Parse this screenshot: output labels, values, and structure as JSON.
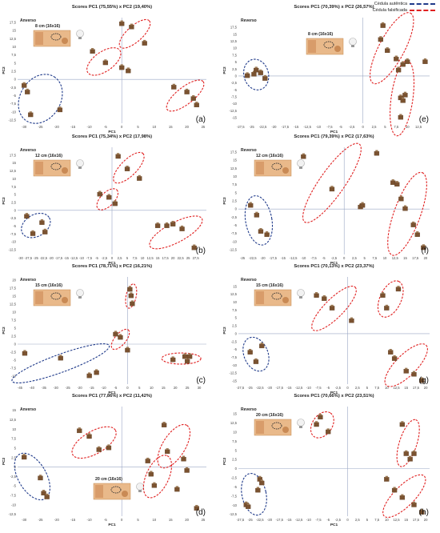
{
  "legend": [
    {
      "label": "Cédula autêntica",
      "color": "#1f3a8a"
    },
    {
      "label": "Cédula falsificada",
      "color": "#e02020"
    }
  ],
  "axis_labels": {
    "x": "PC1",
    "y": "PC2"
  },
  "chart_data": [
    {
      "type": "scatter",
      "panel": "(a)",
      "title": "Scores PC1 (75,55%) x PC2 (19,40%)",
      "side": "Anverso",
      "distance": "8 cm (16x16)",
      "xlabel": "PC1",
      "ylabel": "PC2",
      "xlim": [
        -32,
        26
      ],
      "ylim": [
        -13.5,
        19
      ],
      "xticks": [
        -30,
        -25,
        -20,
        -15,
        -10,
        -5,
        0,
        5,
        10,
        15,
        20,
        25
      ],
      "yticks": [
        -12.5,
        -10,
        -7.5,
        -5,
        -2.5,
        0,
        2.5,
        5,
        7.5,
        10,
        12.5,
        15,
        17.5
      ],
      "series": [
        {
          "group": "authentic",
          "x": [
            -30,
            -29,
            -28,
            -19
          ],
          "y": [
            -2,
            -4,
            -11,
            -9.5
          ]
        },
        {
          "group": "counterfeit",
          "x": [
            0,
            3,
            7,
            -9,
            -5,
            0,
            2,
            16,
            20,
            22,
            23
          ],
          "y": [
            17,
            16,
            11,
            8.5,
            5,
            3.5,
            2.5,
            -2.5,
            -4,
            -6,
            -8
          ]
        }
      ],
      "ellipses": [
        {
          "group": "authentic",
          "cx": -25,
          "cy": -6,
          "rx": 8,
          "ry": 6.2,
          "angle": -58
        },
        {
          "group": "counterfeit",
          "cx": 4,
          "cy": 14,
          "rx": 6,
          "ry": 2.4,
          "angle": -42
        },
        {
          "group": "counterfeit",
          "cx": -5.5,
          "cy": 5.5,
          "rx": 6,
          "ry": 3,
          "angle": -35
        },
        {
          "group": "counterfeit",
          "cx": 19.5,
          "cy": -5,
          "rx": 7,
          "ry": 2.6,
          "angle": -38
        }
      ]
    },
    {
      "type": "scatter",
      "panel": "(e)",
      "title": "Scores PC1 (70,39%) x PC2 (26,57%)",
      "side": "Reverso",
      "distance": "8 cm (16x16)",
      "xlabel": "PC1",
      "ylabel": "PC2",
      "xlim": [
        -28,
        15
      ],
      "ylim": [
        -17,
        21
      ],
      "xticks": [
        -27.5,
        -25,
        -22.5,
        -20,
        -17.5,
        -15,
        -12.5,
        -10,
        -7.5,
        -5,
        -2.5,
        0,
        2.5,
        5,
        7.5,
        10,
        12.5
      ],
      "yticks": [
        -15,
        -12.5,
        -10,
        -7.5,
        -5,
        -2.5,
        0,
        2.5,
        5,
        7.5,
        10,
        12.5,
        15,
        17.5
      ],
      "series": [
        {
          "group": "authentic",
          "x": [
            -26,
            -24.5,
            -24,
            -22,
            -23
          ],
          "y": [
            0,
            0.5,
            2,
            -1,
            1
          ]
        },
        {
          "group": "counterfeit",
          "x": [
            4.5,
            4,
            5.5,
            7.5,
            9,
            10,
            8,
            8.5,
            9,
            9.5,
            8.5,
            14
          ],
          "y": [
            18,
            13,
            9,
            6,
            4,
            5,
            2,
            -8,
            -9,
            -7,
            -15,
            5
          ]
        }
      ],
      "ellipses": [
        {
          "group": "authentic",
          "cx": -24,
          "cy": 0.5,
          "rx": 3.4,
          "ry": 4.3,
          "angle": -15
        },
        {
          "group": "counterfeit",
          "cx": 6.5,
          "cy": 10,
          "rx": 11,
          "ry": 3.5,
          "angle": -62
        },
        {
          "group": "counterfeit",
          "cx": 8.8,
          "cy": -8,
          "rx": 10.5,
          "ry": 3,
          "angle": -82
        }
      ]
    },
    {
      "type": "scatter",
      "panel": "(b)",
      "title": "Scores PC1 (75,34%) x PC2 (17,98%)",
      "side": "Anverso",
      "distance": "12 cm (16x16)",
      "xlabel": "PC1",
      "ylabel": "PC2",
      "xlim": [
        -31,
        31
      ],
      "ylim": [
        -14,
        20
      ],
      "xticks": [
        -30,
        -27.5,
        -25,
        -22.5,
        -20,
        -17.5,
        -15,
        -12.5,
        -10,
        -7.5,
        -5,
        -2.5,
        0,
        2.5,
        5,
        7.5,
        10,
        12.5,
        15,
        17.5,
        20,
        22.5,
        25,
        27.5
      ],
      "yticks": [
        -12.5,
        -10,
        -7.5,
        -5,
        -2.5,
        0,
        2.5,
        5,
        7.5,
        10,
        12.5,
        15,
        17.5
      ],
      "series": [
        {
          "group": "authentic",
          "x": [
            -28,
            -26,
            -23,
            -22
          ],
          "y": [
            -2,
            -7.5,
            -4,
            -7
          ]
        },
        {
          "group": "counterfeit",
          "x": [
            2,
            5,
            9,
            -4,
            -1,
            1,
            15,
            18,
            20,
            23,
            27
          ],
          "y": [
            17,
            13,
            10,
            5,
            4,
            2,
            -5,
            -5,
            -4.5,
            -6,
            -12
          ]
        }
      ],
      "ellipses": [
        {
          "group": "authentic",
          "cx": -25,
          "cy": -4.8,
          "rx": 5,
          "ry": 3.5,
          "angle": -30
        },
        {
          "group": "counterfeit",
          "cx": 5.5,
          "cy": 13.5,
          "rx": 6.5,
          "ry": 2.6,
          "angle": -45
        },
        {
          "group": "counterfeit",
          "cx": -1.5,
          "cy": 3.5,
          "rx": 4.3,
          "ry": 2.2,
          "angle": -45
        },
        {
          "group": "counterfeit",
          "cx": 21,
          "cy": -7,
          "rx": 9.5,
          "ry": 3.2,
          "angle": -28
        }
      ]
    },
    {
      "type": "scatter",
      "panel": "(f)",
      "title": "Scores PC1 (79,39%) x PC2 (17,63%)",
      "side": "Reverso",
      "distance": "12 cm (16x16)",
      "xlabel": "PC1",
      "ylabel": "PC2",
      "xlim": [
        -26,
        21
      ],
      "ylim": [
        -14,
        19
      ],
      "xticks": [
        -25,
        -22.5,
        -20,
        -17.5,
        -15,
        -12.5,
        -10,
        -7.5,
        -5,
        -2.5,
        0,
        2.5,
        5,
        7.5,
        10,
        12.5,
        15,
        17.5,
        20
      ],
      "yticks": [
        -12.5,
        -10,
        -7.5,
        -5,
        -2.5,
        0,
        2.5,
        5,
        7.5,
        10,
        12.5,
        15,
        17.5
      ],
      "series": [
        {
          "group": "authentic",
          "x": [
            -23,
            -21.5,
            -20.5,
            -19
          ],
          "y": [
            1,
            -2,
            -7,
            -8
          ]
        },
        {
          "group": "counterfeit",
          "x": [
            -10,
            -3,
            4,
            4.5,
            8,
            12,
            13,
            14,
            15,
            17,
            18,
            19.5
          ],
          "y": [
            16,
            6,
            0.5,
            1,
            17,
            8,
            7.5,
            3,
            0,
            -5,
            -8,
            -12
          ]
        }
      ],
      "ellipses": [
        {
          "group": "authentic",
          "cx": -21,
          "cy": -3.5,
          "rx": 3.6,
          "ry": 6.8,
          "angle": -10
        },
        {
          "group": "counterfeit",
          "cx": -3,
          "cy": 8,
          "rx": 13,
          "ry": 3.4,
          "angle": -55
        },
        {
          "group": "counterfeit",
          "cx": 15.5,
          "cy": -1.5,
          "rx": 12,
          "ry": 3.6,
          "angle": -70
        }
      ]
    },
    {
      "type": "scatter",
      "panel": "(c)",
      "title": "Scores PC1 (78,71%) x PC2 (16,21%)",
      "side": "Anverso",
      "distance": "15 cm (16x16)",
      "xlabel": "PC1",
      "ylabel": "PC2",
      "xlim": [
        -46,
        33
      ],
      "ylim": [
        -12.5,
        21
      ],
      "xticks": [
        -45,
        -40,
        -35,
        -30,
        -25,
        -20,
        -15,
        -10,
        -5,
        0,
        5,
        10,
        15,
        20,
        25,
        30
      ],
      "yticks": [
        -10,
        -7.5,
        -5,
        -2.5,
        0,
        2.5,
        5,
        7.5,
        10,
        12.5,
        15,
        17.5,
        20
      ],
      "series": [
        {
          "group": "authentic",
          "x": [
            -43,
            -28,
            -16,
            -13
          ],
          "y": [
            -3,
            -4.5,
            -10,
            -9
          ]
        },
        {
          "group": "counterfeit",
          "x": [
            1,
            1.5,
            2,
            -5,
            -3,
            0,
            19,
            24,
            25,
            26
          ],
          "y": [
            17,
            15,
            12.5,
            3,
            2,
            -2,
            -5,
            -4,
            -5.5,
            -4
          ]
        }
      ],
      "ellipses": [
        {
          "group": "authentic",
          "cx": -28,
          "cy": -6,
          "rx": 18.5,
          "ry": 3.2,
          "angle": -20
        },
        {
          "group": "counterfeit",
          "cx": 1.5,
          "cy": 15,
          "rx": 4.4,
          "ry": 1.8,
          "angle": -78
        },
        {
          "group": "counterfeit",
          "cx": -3,
          "cy": 1.5,
          "rx": 4.4,
          "ry": 2,
          "angle": -50
        },
        {
          "group": "counterfeit",
          "cx": 22.5,
          "cy": -4.5,
          "rx": 7,
          "ry": 2,
          "angle": 0
        }
      ]
    },
    {
      "type": "scatter",
      "panel": "(g)",
      "title": "Scores PC1 (70,13%) x PC2 (23,37%)",
      "side": "Reverso",
      "distance": "15 cm (16x16)",
      "xlabel": "PC1",
      "ylabel": "PC2",
      "xlim": [
        -28,
        21
      ],
      "ylim": [
        -16,
        18
      ],
      "xticks": [
        -27.5,
        -25,
        -22.5,
        -20,
        -17.5,
        -15,
        -12.5,
        -10,
        -7.5,
        -5,
        -2.5,
        0,
        2.5,
        5,
        7.5,
        10,
        12.5,
        15,
        17.5,
        20
      ],
      "yticks": [
        -15,
        -12.5,
        -10,
        -7.5,
        -5,
        -2.5,
        0,
        2.5,
        5,
        7.5,
        10,
        12.5,
        15
      ],
      "series": [
        {
          "group": "authentic",
          "x": [
            -25,
            -23.5,
            -22
          ],
          "y": [
            -6,
            -9,
            -4
          ]
        },
        {
          "group": "counterfeit",
          "x": [
            -8,
            -6,
            -4,
            1,
            9,
            10,
            13,
            11,
            12,
            15,
            17,
            19
          ],
          "y": [
            12,
            11,
            8,
            4,
            12,
            8,
            14,
            -6,
            -8,
            -12,
            -13,
            -15
          ]
        }
      ],
      "ellipses": [
        {
          "group": "authentic",
          "cx": -23.5,
          "cy": -6.5,
          "rx": 3.4,
          "ry": 5,
          "angle": -22
        },
        {
          "group": "counterfeit",
          "cx": -3.5,
          "cy": 8,
          "rx": 8.5,
          "ry": 2.7,
          "angle": -45
        },
        {
          "group": "counterfeit",
          "cx": 11,
          "cy": 11,
          "rx": 5.5,
          "ry": 3,
          "angle": -65
        },
        {
          "group": "counterfeit",
          "cx": 15,
          "cy": -10,
          "rx": 8,
          "ry": 3,
          "angle": -45
        }
      ]
    },
    {
      "type": "scatter",
      "panel": "(d)",
      "title": "Scores PC1 (77,86%) x PC2 (11,42%)",
      "side": "Anverso",
      "distance": "20 cm (16x16)",
      "xlabel": "PC1",
      "ylabel": "PC2",
      "xlim": [
        -32,
        26
      ],
      "ylim": [
        -13,
        16
      ],
      "xticks": [
        -30,
        -25,
        -20,
        -15,
        -10,
        -5,
        0,
        5,
        10,
        15,
        20,
        25
      ],
      "yticks": [
        -12.5,
        -10,
        -7.5,
        -5,
        -2.5,
        0,
        2.5,
        5,
        7.5,
        10,
        12.5,
        15
      ],
      "series": [
        {
          "group": "authentic",
          "x": [
            -30,
            -25,
            -24,
            -23
          ],
          "y": [
            2.5,
            -3,
            -7,
            -8
          ]
        },
        {
          "group": "counterfeit",
          "x": [
            -13,
            -10,
            -7,
            -4,
            13,
            14,
            19,
            20,
            8,
            9,
            10,
            17,
            23
          ],
          "y": [
            9.5,
            8,
            4.5,
            5,
            11,
            4,
            2,
            -1,
            1.5,
            -2,
            -5,
            -6,
            -11
          ]
        }
      ],
      "ellipses": [
        {
          "group": "authentic",
          "cx": -27.5,
          "cy": -2.5,
          "rx": 4,
          "ry": 7.3,
          "angle": -30
        },
        {
          "group": "counterfeit",
          "cx": -8.5,
          "cy": 6.5,
          "rx": 7,
          "ry": 3.2,
          "angle": -30
        },
        {
          "group": "counterfeit",
          "cx": 16,
          "cy": 5.5,
          "rx": 7,
          "ry": 3.2,
          "angle": -58
        },
        {
          "group": "counterfeit",
          "cx": 11,
          "cy": -2.5,
          "rx": 6.5,
          "ry": 3.2,
          "angle": -65
        }
      ]
    },
    {
      "type": "scatter",
      "panel": "(h)",
      "title": "Scores PC1 (70,66%) x PC2 (23,51%)",
      "side": "Reverso",
      "distance": "20 cm (16x16)",
      "xlabel": "PC1",
      "ylabel": "PC2",
      "xlim": [
        -28,
        21
      ],
      "ylim": [
        -13,
        17
      ],
      "xticks": [
        -27.5,
        -25,
        -22.5,
        -20,
        -17.5,
        -15,
        -12.5,
        -10,
        -7.5,
        -5,
        -2.5,
        0,
        2.5,
        5,
        7.5,
        10,
        12.5,
        15,
        17.5,
        20
      ],
      "yticks": [
        -12.5,
        -10,
        -7.5,
        -5,
        -2.5,
        0,
        2.5,
        5,
        7.5,
        10,
        12.5,
        15
      ],
      "series": [
        {
          "group": "authentic",
          "x": [
            -26,
            -25.5,
            -23,
            -22.5,
            -22
          ],
          "y": [
            -10,
            -10.5,
            -6,
            -3,
            -4
          ]
        },
        {
          "group": "counterfeit",
          "x": [
            -7,
            -8,
            -5,
            14,
            15,
            16,
            17,
            10,
            12,
            14,
            17,
            19
          ],
          "y": [
            14,
            12,
            10,
            12,
            4,
            2.5,
            4,
            -3,
            -6,
            -8,
            -10,
            -12
          ]
        }
      ],
      "ellipses": [
        {
          "group": "authentic",
          "cx": -24,
          "cy": -7,
          "rx": 3.2,
          "ry": 5.6,
          "angle": -12
        },
        {
          "group": "counterfeit",
          "cx": -6.5,
          "cy": 12,
          "rx": 3.8,
          "ry": 2.6,
          "angle": -55
        },
        {
          "group": "counterfeit",
          "cx": 15.5,
          "cy": 7,
          "rx": 6.5,
          "ry": 2.3,
          "angle": -72
        },
        {
          "group": "counterfeit",
          "cx": 14.5,
          "cy": -7.5,
          "rx": 7.5,
          "ry": 2.7,
          "angle": -45
        }
      ]
    }
  ]
}
